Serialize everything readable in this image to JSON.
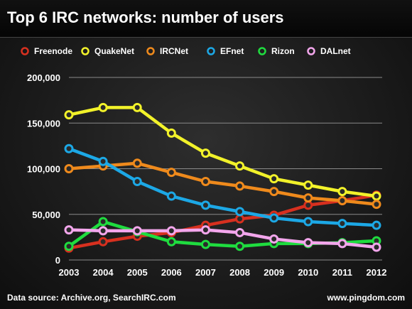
{
  "title": "Top 6 IRC networks: number of users",
  "footer": {
    "source": "Data source: Archive.org, SearchIRC.com",
    "site": "www.pingdom.com"
  },
  "chart_data": {
    "type": "line",
    "title": "Top 6 IRC networks: number of users",
    "xlabel": "",
    "ylabel": "",
    "x": [
      "2003",
      "2004",
      "2005",
      "2006",
      "2007",
      "2008",
      "2009",
      "2010",
      "2011",
      "2012"
    ],
    "ylim": [
      0,
      200000
    ],
    "yticks": [
      0,
      50000,
      100000,
      150000,
      200000
    ],
    "ytick_labels": [
      "0",
      "50,000",
      "100,000",
      "150,000",
      "200,000"
    ],
    "grid": true,
    "legend_position": "top",
    "series": [
      {
        "name": "Freenode",
        "color": "#d7301f",
        "values": [
          13000,
          20000,
          26000,
          30000,
          38000,
          45000,
          49000,
          60000,
          65000,
          71000
        ]
      },
      {
        "name": "QuakeNet",
        "color": "#f2f22a",
        "values": [
          159000,
          167000,
          167000,
          139000,
          117000,
          103000,
          89000,
          82000,
          75000,
          70000
        ]
      },
      {
        "name": "IRCNet",
        "color": "#ef8a1c",
        "values": [
          100000,
          103000,
          106000,
          96000,
          86000,
          81000,
          75000,
          68000,
          65000,
          61000
        ]
      },
      {
        "name": "EFnet",
        "color": "#1ca8e6",
        "values": [
          122000,
          108000,
          86000,
          70000,
          60000,
          53000,
          46000,
          42000,
          40000,
          38000
        ]
      },
      {
        "name": "Rizon",
        "color": "#1fdc3f",
        "values": [
          15000,
          42000,
          31000,
          20000,
          17000,
          15000,
          18000,
          18000,
          19000,
          21000
        ]
      },
      {
        "name": "DALnet",
        "color": "#f3a6ec",
        "values": [
          33000,
          32000,
          32000,
          32000,
          33000,
          30000,
          23000,
          19000,
          18000,
          14000
        ]
      }
    ]
  }
}
